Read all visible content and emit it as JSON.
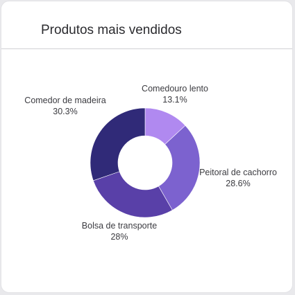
{
  "card": {
    "title": "Produtos mais vendidos"
  },
  "chart_data": {
    "type": "pie",
    "variant": "donut",
    "categories": [
      "Comedouro lento",
      "Peitoral de cachorro",
      "Bolsa de transporte",
      "Comedor de madeira"
    ],
    "values": [
      13.1,
      28.6,
      28,
      30.3
    ],
    "value_labels": [
      "13.1%",
      "28.6%",
      "28%",
      "30.3%"
    ],
    "colors": [
      "#b089f0",
      "#7c62cf",
      "#5940a8",
      "#302a78"
    ],
    "legend": "none"
  }
}
